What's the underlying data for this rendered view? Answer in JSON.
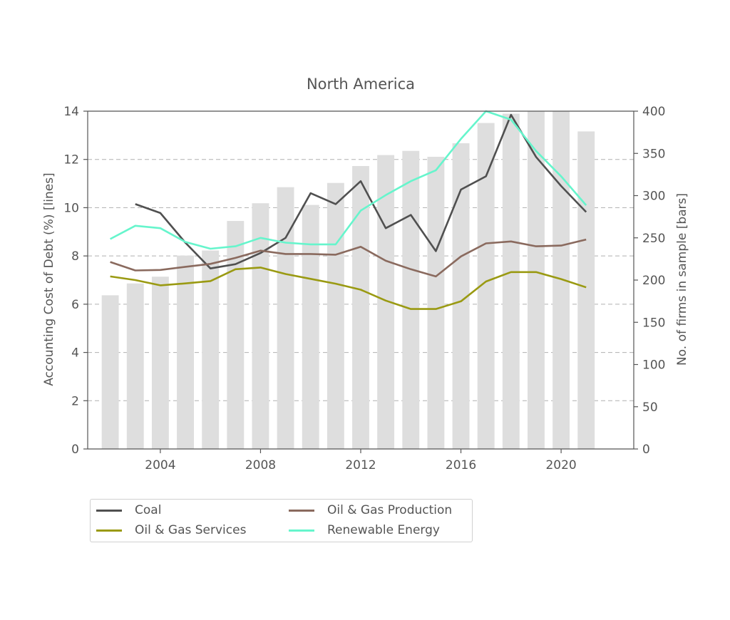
{
  "chart_data": {
    "type": "line",
    "title": "North America",
    "ylabel": "Accounting Cost of Debt (%)  [lines]",
    "y2label": "No. of firms in sample  [bars]",
    "xlim": [
      2001.1,
      2022.9
    ],
    "ylim": [
      0,
      14
    ],
    "y2lim": [
      0,
      400
    ],
    "xticks": [
      2004,
      2008,
      2012,
      2016,
      2020
    ],
    "yticks": [
      0,
      2,
      4,
      6,
      8,
      10,
      12,
      14
    ],
    "y2ticks": [
      0,
      50,
      100,
      150,
      200,
      250,
      300,
      350,
      400
    ],
    "grid": "horizontal dashed",
    "legend_position": "below",
    "bars": {
      "name": "No. of firms in sample",
      "color": "#dedede",
      "x": [
        2002,
        2003,
        2004,
        2005,
        2006,
        2007,
        2008,
        2009,
        2010,
        2011,
        2012,
        2013,
        2014,
        2015,
        2016,
        2017,
        2018,
        2019,
        2020,
        2021
      ],
      "values": [
        182,
        196,
        204,
        229,
        235,
        270,
        291,
        310,
        289,
        315,
        335,
        348,
        353,
        346,
        362,
        386,
        397,
        400,
        400,
        376
      ]
    },
    "series": [
      {
        "name": "Coal",
        "color": "#505050",
        "x": [
          2003,
          2004,
          2005,
          2006,
          2007,
          2008,
          2009,
          2010,
          2011,
          2012,
          2013,
          2014,
          2015,
          2016,
          2017,
          2018,
          2019,
          2020,
          2021
        ],
        "values": [
          10.15,
          9.78,
          8.55,
          7.48,
          7.66,
          8.12,
          8.75,
          10.6,
          10.15,
          11.1,
          9.15,
          9.7,
          8.2,
          10.75,
          11.3,
          13.85,
          12.1,
          10.9,
          9.82
        ]
      },
      {
        "name": "Oil & Gas Production",
        "color": "#8a6a5e",
        "x": [
          2002,
          2003,
          2004,
          2005,
          2006,
          2007,
          2008,
          2009,
          2010,
          2011,
          2012,
          2013,
          2014,
          2015,
          2016,
          2017,
          2018,
          2019,
          2020,
          2021
        ],
        "values": [
          7.75,
          7.4,
          7.42,
          7.55,
          7.67,
          7.92,
          8.22,
          8.08,
          8.08,
          8.05,
          8.38,
          7.8,
          7.45,
          7.15,
          7.98,
          8.52,
          8.6,
          8.4,
          8.43,
          8.68
        ]
      },
      {
        "name": "Oil & Gas Services",
        "color": "#9a9a12",
        "x": [
          2002,
          2003,
          2004,
          2005,
          2006,
          2007,
          2008,
          2009,
          2010,
          2011,
          2012,
          2013,
          2014,
          2015,
          2016,
          2017,
          2018,
          2019,
          2020,
          2021
        ],
        "values": [
          7.15,
          7.0,
          6.78,
          6.86,
          6.96,
          7.45,
          7.52,
          7.25,
          7.05,
          6.85,
          6.6,
          6.15,
          5.8,
          5.8,
          6.12,
          6.94,
          7.33,
          7.33,
          7.04,
          6.7
        ]
      },
      {
        "name": "Renewable Energy",
        "color": "#66f5cc",
        "x": [
          2002,
          2003,
          2004,
          2005,
          2006,
          2007,
          2008,
          2009,
          2010,
          2011,
          2012,
          2013,
          2014,
          2015,
          2016,
          2017,
          2018,
          2019,
          2020,
          2021
        ],
        "values": [
          8.7,
          9.25,
          9.15,
          8.58,
          8.3,
          8.4,
          8.75,
          8.55,
          8.48,
          8.48,
          9.88,
          10.52,
          11.1,
          11.55,
          12.85,
          14.0,
          13.65,
          12.35,
          11.3,
          10.1
        ]
      }
    ]
  }
}
